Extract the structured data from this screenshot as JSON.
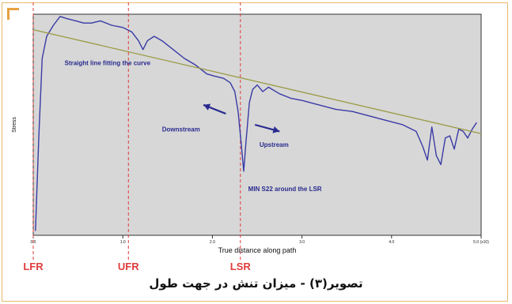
{
  "caption": "تصویر(۳) - میزان تنش در جهت طول",
  "chart_data": {
    "type": "line",
    "xlabel": "True distance along path",
    "ylabel": "Stress",
    "xlim": [
      0.0,
      4.0
    ],
    "x_tick_labels": [
      "0.0",
      "1.0",
      "2.0",
      "3.0",
      "4.0",
      "5.0 (x10)"
    ],
    "x_ticks": [
      0.0,
      0.8,
      1.6,
      2.4,
      3.2,
      4.0
    ],
    "ylim": [
      0,
      100
    ],
    "grid": false,
    "colors": {
      "curve": "#3a3aa6",
      "fit": "#9a9a44",
      "marker": "#e03c3c",
      "plot_bg": "#d7d7d7",
      "annotation": "#2a2a90"
    },
    "series": [
      {
        "name": "stress",
        "x": [
          0.02,
          0.05,
          0.08,
          0.12,
          0.18,
          0.24,
          0.3,
          0.38,
          0.45,
          0.52,
          0.6,
          0.7,
          0.8,
          0.88,
          0.94,
          0.98,
          1.02,
          1.08,
          1.15,
          1.25,
          1.35,
          1.45,
          1.55,
          1.62,
          1.7,
          1.76,
          1.8,
          1.83,
          1.86,
          1.88,
          1.9,
          1.93,
          1.96,
          2.0,
          2.05,
          2.1,
          2.2,
          2.3,
          2.4,
          2.55,
          2.7,
          2.85,
          3.0,
          3.15,
          3.3,
          3.42,
          3.48,
          3.52,
          3.56,
          3.6,
          3.64,
          3.68,
          3.72,
          3.76,
          3.8,
          3.84,
          3.88,
          3.92,
          3.96
        ],
        "y": [
          2,
          45,
          80,
          90,
          95,
          99,
          98,
          97,
          96,
          96,
          97,
          95,
          94,
          92,
          88,
          84,
          88,
          90,
          88,
          84,
          80,
          77,
          73,
          72,
          71,
          69,
          65,
          56,
          40,
          29,
          42,
          60,
          66,
          68,
          65,
          67,
          64,
          62,
          61,
          59,
          57,
          56,
          54,
          52,
          50,
          47,
          40,
          34,
          49,
          36,
          32,
          44,
          45,
          39,
          48,
          47,
          44,
          48,
          51
        ]
      },
      {
        "name": "fit",
        "x": [
          0.0,
          4.0
        ],
        "y": [
          93,
          46
        ]
      }
    ],
    "vlines": [
      {
        "x": 0.0,
        "label": "LFR"
      },
      {
        "x": 0.85,
        "label": "UFR"
      },
      {
        "x": 1.85,
        "label": "LSR"
      }
    ],
    "annotations": [
      {
        "text": "Straight line fitting the curve",
        "x": 0.28,
        "y": 77
      },
      {
        "text": "Downstream",
        "x": 1.15,
        "y": 47
      },
      {
        "text": "Upstream",
        "x": 2.02,
        "y": 40
      },
      {
        "text": "MIN S22 around the LSR",
        "x": 1.92,
        "y": 20
      }
    ],
    "arrows": [
      {
        "from": [
          1.72,
          55
        ],
        "to": [
          1.52,
          59
        ]
      },
      {
        "from": [
          1.98,
          50
        ],
        "to": [
          2.2,
          47
        ]
      }
    ]
  }
}
